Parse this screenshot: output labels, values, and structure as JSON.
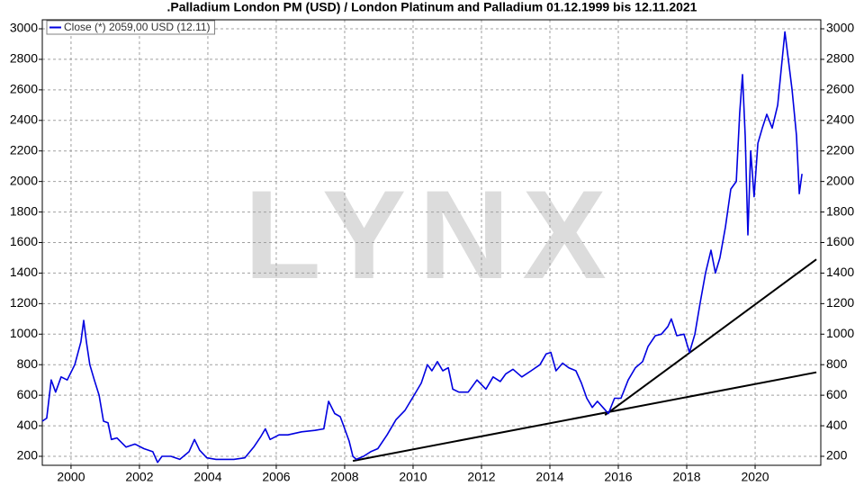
{
  "chart_data": {
    "type": "line",
    "title": ".Palladium London PM (USD) / London Platinum and Palladium 01.12.1999 bis 12.11.2021",
    "watermark": "LYNX",
    "xlim": [
      1999.16,
      2021.92
    ],
    "xticks": [
      2000,
      2002,
      2004,
      2006,
      2008,
      2010,
      2012,
      2014,
      2016,
      2018,
      2020
    ],
    "ylim": [
      141,
      3059
    ],
    "yticks": [
      200,
      400,
      600,
      800,
      1000,
      1200,
      1400,
      1600,
      1800,
      2000,
      2200,
      2400,
      2600,
      2800,
      3000
    ],
    "grid": true,
    "legend": "top-left",
    "series": [
      {
        "name": "Close (*) 2059,00 USD (12.11)",
        "color": "#0000e0",
        "x": [
          1999.16,
          1999.29,
          1999.42,
          1999.55,
          1999.71,
          1999.89,
          2000.11,
          2000.29,
          2000.37,
          2000.45,
          2000.55,
          2000.68,
          2000.82,
          2000.95,
          2001.08,
          2001.18,
          2001.34,
          2001.61,
          2001.87,
          2002.13,
          2002.39,
          2002.53,
          2002.66,
          2002.92,
          2003.18,
          2003.45,
          2003.61,
          2003.76,
          2003.97,
          2004.24,
          2004.5,
          2004.76,
          2005.08,
          2005.34,
          2005.55,
          2005.68,
          2005.82,
          2006.08,
          2006.34,
          2006.74,
          2007.13,
          2007.39,
          2007.53,
          2007.71,
          2007.87,
          2007.97,
          2008.13,
          2008.24,
          2008.34,
          2008.55,
          2008.76,
          2008.97,
          2009.24,
          2009.5,
          2009.76,
          2010.03,
          2010.24,
          2010.42,
          2010.55,
          2010.71,
          2010.87,
          2011.03,
          2011.16,
          2011.34,
          2011.61,
          2011.87,
          2012.13,
          2012.34,
          2012.55,
          2012.71,
          2012.92,
          2013.18,
          2013.45,
          2013.71,
          2013.89,
          2014.03,
          2014.18,
          2014.37,
          2014.55,
          2014.76,
          2014.92,
          2015.08,
          2015.24,
          2015.39,
          2015.55,
          2015.71,
          2015.89,
          2016.08,
          2016.29,
          2016.5,
          2016.71,
          2016.87,
          2017.08,
          2017.26,
          2017.45,
          2017.55,
          2017.71,
          2017.92,
          2018.08,
          2018.24,
          2018.39,
          2018.55,
          2018.71,
          2018.84,
          2018.97,
          2019.13,
          2019.29,
          2019.45,
          2019.55,
          2019.63,
          2019.71,
          2019.79,
          2019.87,
          2019.97,
          2020.08,
          2020.21,
          2020.34,
          2020.5,
          2020.66,
          2020.79,
          2020.87,
          2020.97,
          2021.08,
          2021.21,
          2021.29,
          2021.37
        ],
        "values": [
          430,
          450,
          700,
          620,
          720,
          700,
          800,
          950,
          1090,
          950,
          800,
          700,
          600,
          430,
          420,
          310,
          320,
          260,
          280,
          250,
          230,
          160,
          200,
          200,
          180,
          230,
          310,
          240,
          190,
          180,
          180,
          180,
          190,
          260,
          330,
          380,
          310,
          340,
          340,
          360,
          370,
          380,
          560,
          480,
          460,
          400,
          300,
          200,
          180,
          200,
          230,
          250,
          340,
          440,
          500,
          600,
          680,
          800,
          760,
          820,
          760,
          780,
          640,
          620,
          620,
          700,
          640,
          720,
          690,
          740,
          770,
          720,
          760,
          800,
          870,
          880,
          760,
          810,
          780,
          760,
          680,
          580,
          520,
          560,
          520,
          480,
          580,
          580,
          700,
          780,
          820,
          920,
          990,
          1000,
          1050,
          1100,
          990,
          1000,
          880,
          1000,
          1200,
          1400,
          1550,
          1400,
          1500,
          1700,
          1950,
          2000,
          2450,
          2700,
          2300,
          1650,
          2200,
          1900,
          2250,
          2350,
          2440,
          2350,
          2500,
          2800,
          2980,
          2800,
          2600,
          2300,
          1920,
          2050
        ]
      }
    ],
    "trend_lines": [
      {
        "color": "#000000",
        "x": [
          2008.24,
          2021.79
        ],
        "values": [
          170,
          750
        ]
      },
      {
        "color": "#000000",
        "x": [
          2015.61,
          2021.79
        ],
        "values": [
          470,
          1490
        ]
      }
    ]
  }
}
